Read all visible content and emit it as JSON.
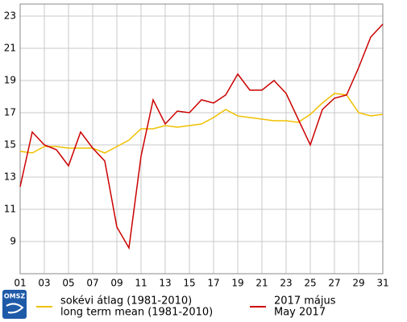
{
  "chart_data": {
    "type": "line",
    "logo": "OMSZ",
    "xlim": [
      1,
      31
    ],
    "xticks": [
      {
        "value": 1,
        "label": "01"
      },
      {
        "value": 3,
        "label": "03"
      },
      {
        "value": 5,
        "label": "05"
      },
      {
        "value": 7,
        "label": "07"
      },
      {
        "value": 9,
        "label": "09"
      },
      11,
      13,
      15,
      17,
      19,
      21,
      23,
      25,
      27,
      29,
      31
    ],
    "ylim": [
      7,
      23.75
    ],
    "yticks": [
      9,
      11,
      13,
      15,
      17,
      19,
      21,
      23
    ],
    "grid": true,
    "x": [
      1,
      2,
      3,
      4,
      5,
      6,
      7,
      8,
      9,
      10,
      11,
      12,
      13,
      14,
      15,
      16,
      17,
      18,
      19,
      20,
      21,
      22,
      23,
      24,
      25,
      26,
      27,
      28,
      29,
      30,
      31
    ],
    "series": [
      {
        "name": "sokévi átlag (1981-2010)",
        "name_en": "long term mean (1981-2010)",
        "color": "#f0c000",
        "values": [
          14.6,
          14.5,
          14.9,
          14.9,
          14.8,
          14.8,
          14.8,
          14.5,
          14.9,
          15.3,
          16.0,
          16.0,
          16.2,
          16.1,
          16.2,
          16.3,
          16.7,
          17.2,
          16.8,
          16.7,
          16.6,
          16.5,
          16.5,
          16.4,
          16.9,
          17.6,
          18.2,
          18.1,
          17.0,
          16.8,
          16.9
        ]
      },
      {
        "name": "2017 május",
        "name_en": "May 2017",
        "color": "#cc0000",
        "values": [
          12.4,
          15.8,
          15.0,
          14.7,
          13.7,
          15.8,
          14.8,
          14.0,
          9.9,
          8.6,
          14.3,
          17.8,
          16.3,
          17.1,
          17.0,
          17.8,
          17.6,
          18.1,
          19.4,
          18.4,
          18.4,
          19.0,
          18.2,
          16.6,
          15.0,
          17.2,
          17.9,
          18.1,
          19.8,
          21.7,
          22.5
        ]
      }
    ]
  }
}
